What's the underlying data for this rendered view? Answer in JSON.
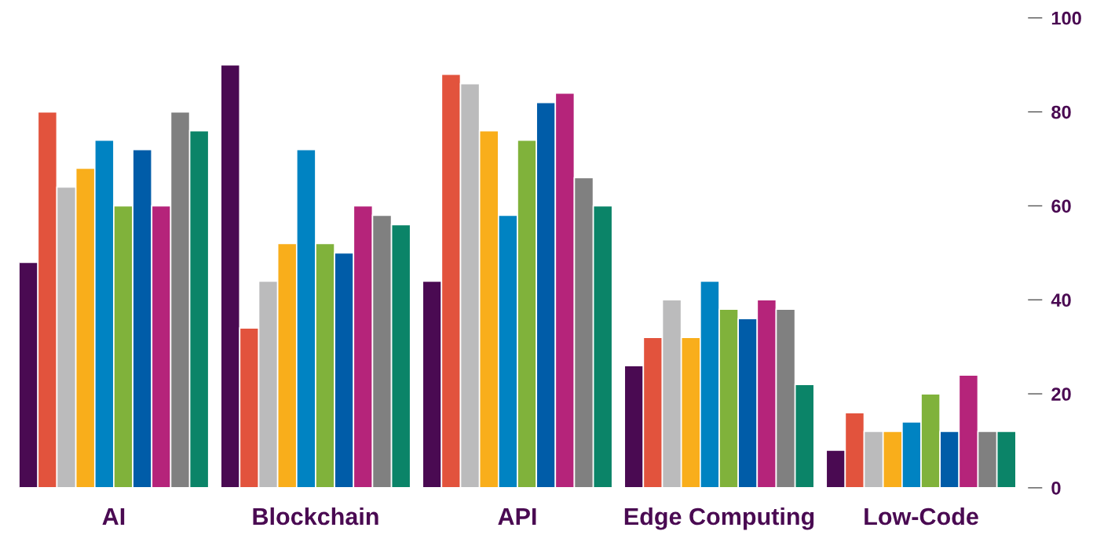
{
  "chart_data": {
    "type": "bar",
    "categories": [
      "AI",
      "Blockchain",
      "API",
      "Edge Computing",
      "Low-Code"
    ],
    "series": [
      {
        "color": "#4a0a52",
        "values": [
          48,
          90,
          44,
          26,
          8
        ]
      },
      {
        "color": "#e2533d",
        "values": [
          80,
          34,
          88,
          32,
          16
        ]
      },
      {
        "color": "#bbbbbc",
        "values": [
          64,
          44,
          86,
          40,
          12
        ]
      },
      {
        "color": "#f9ae1b",
        "values": [
          68,
          52,
          76,
          32,
          12
        ]
      },
      {
        "color": "#0083c2",
        "values": [
          74,
          72,
          58,
          44,
          14
        ]
      },
      {
        "color": "#80b23b",
        "values": [
          60,
          52,
          74,
          38,
          20
        ]
      },
      {
        "color": "#005ca8",
        "values": [
          72,
          50,
          82,
          36,
          12
        ]
      },
      {
        "color": "#b5247a",
        "values": [
          60,
          60,
          84,
          40,
          24
        ]
      },
      {
        "color": "#808080",
        "values": [
          80,
          58,
          66,
          38,
          12
        ]
      },
      {
        "color": "#0b8468",
        "values": [
          76,
          56,
          60,
          22,
          12
        ]
      }
    ],
    "ylim": [
      0,
      100
    ],
    "yticks": [
      0,
      20,
      40,
      60,
      80,
      100
    ],
    "grid": false,
    "legend": false
  }
}
